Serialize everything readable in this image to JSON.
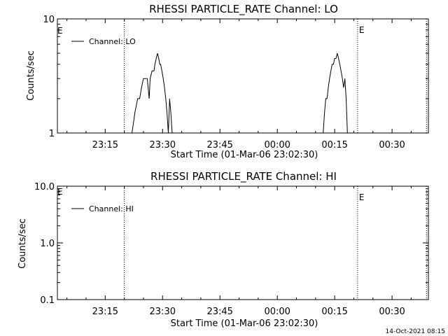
{
  "chart_data": [
    {
      "type": "line",
      "title": "RHESSI PARTICLE_RATE Channel: LO",
      "xlabel": "Start Time (01-Mar-06 23:02:30)",
      "ylabel": "Counts/sec",
      "yscale": "log",
      "ylim": [
        1,
        10
      ],
      "yticks": [
        "10",
        "1"
      ],
      "xlim_minutes_after_start": [
        0,
        97
      ],
      "xticks": [
        "23:15",
        "23:30",
        "23:45",
        "00:00",
        "00:15",
        "00:30"
      ],
      "legend": {
        "position": "top-left",
        "entries": [
          "Channel: LO"
        ]
      },
      "event_lines": [
        {
          "time": "23:20",
          "label": ""
        },
        {
          "time": "00:21",
          "label": "E"
        },
        {
          "time": "00:39",
          "label": ""
        }
      ],
      "edge_marker": "E",
      "series": [
        {
          "name": "Channel: LO",
          "points": [
            [
              "23:22:00",
              1
            ],
            [
              "23:22:30",
              1.3
            ],
            [
              "23:22:45",
              1.5
            ],
            [
              "23:23:30",
              2
            ],
            [
              "23:24:00",
              2
            ],
            [
              "23:24:30",
              2.5
            ],
            [
              "23:25:00",
              3
            ],
            [
              "23:25:30",
              3
            ],
            [
              "23:26:00",
              3
            ],
            [
              "23:26:30",
              2
            ],
            [
              "23:26:45",
              3
            ],
            [
              "23:27:15",
              3.5
            ],
            [
              "23:27:45",
              3.5
            ],
            [
              "23:28:00",
              4
            ],
            [
              "23:28:20",
              4.5
            ],
            [
              "23:28:40",
              5
            ],
            [
              "23:29:00",
              4.5
            ],
            [
              "23:29:15",
              4
            ],
            [
              "23:29:30",
              4
            ],
            [
              "23:29:50",
              3.5
            ],
            [
              "23:30:10",
              3
            ],
            [
              "23:30:30",
              2.5
            ],
            [
              "23:30:50",
              2
            ],
            [
              "23:31:10",
              1.5
            ],
            [
              "23:31:30",
              1
            ],
            [
              "23:31:50",
              2
            ],
            [
              "23:32:10",
              1.5
            ],
            [
              "23:32:30",
              1
            ],
            [
              "00:12:00",
              1
            ],
            [
              "00:12:20",
              1.5
            ],
            [
              "00:12:40",
              2
            ],
            [
              "00:13:00",
              2
            ],
            [
              "00:13:20",
              2.5
            ],
            [
              "00:13:40",
              3
            ],
            [
              "00:14:00",
              3.5
            ],
            [
              "00:14:20",
              4
            ],
            [
              "00:14:40",
              4
            ],
            [
              "00:15:00",
              4.5
            ],
            [
              "00:15:20",
              4.5
            ],
            [
              "00:15:40",
              5
            ],
            [
              "00:16:00",
              4.5
            ],
            [
              "00:16:20",
              4
            ],
            [
              "00:16:40",
              3.5
            ],
            [
              "00:17:00",
              3
            ],
            [
              "00:17:20",
              2.5
            ],
            [
              "00:17:40",
              3
            ],
            [
              "00:18:00",
              2
            ],
            [
              "00:18:20",
              1
            ]
          ]
        }
      ]
    },
    {
      "type": "line",
      "title": "RHESSI PARTICLE_RATE Channel: HI",
      "xlabel": "Start Time (01-Mar-06 23:02:30)",
      "ylabel": "Counts/sec",
      "yscale": "log",
      "ylim": [
        0.1,
        10
      ],
      "yticks": [
        "10.0",
        "1.0",
        "0.1"
      ],
      "xlim_minutes_after_start": [
        0,
        97
      ],
      "xticks": [
        "23:15",
        "23:30",
        "23:45",
        "00:00",
        "00:15",
        "00:30"
      ],
      "legend": {
        "position": "top-left",
        "entries": [
          "Channel: HI"
        ]
      },
      "event_lines": [
        {
          "time": "23:20",
          "label": ""
        },
        {
          "time": "00:21",
          "label": "E"
        },
        {
          "time": "00:39",
          "label": ""
        }
      ],
      "edge_marker": "E",
      "series": [
        {
          "name": "Channel: HI",
          "points": []
        }
      ]
    }
  ],
  "footer": {
    "timestamp": "14-Oct-2021 08:15"
  }
}
